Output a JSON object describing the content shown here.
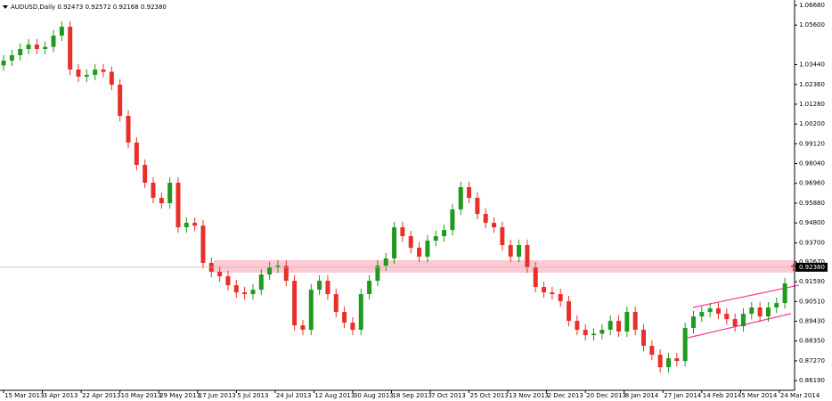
{
  "chart_data": {
    "type": "candlestick",
    "title": "AUDUSD,Daily  0.92473 0.92572 0.92168 0.92380",
    "up_color": "#1f9a1f",
    "down_color": "#e8302a",
    "xlim": [
      -1.3,
      285.5
    ],
    "ylim": [
      0.8566,
      1.0697
    ],
    "xticks": [
      {
        "value": 0,
        "label": "15 Mar 2013"
      },
      {
        "value": 14,
        "label": "3 Apr 2013"
      },
      {
        "value": 28,
        "label": "22 Apr 2013"
      },
      {
        "value": 42,
        "label": "10 May 2013"
      },
      {
        "value": 56,
        "label": "29 May 2013"
      },
      {
        "value": 70,
        "label": "17 Jun 2013"
      },
      {
        "value": 84,
        "label": "5 Jul 2013"
      },
      {
        "value": 98,
        "label": "24 Jul 2013"
      },
      {
        "value": 112,
        "label": "12 Aug 2013"
      },
      {
        "value": 126,
        "label": "30 Aug 2013"
      },
      {
        "value": 140,
        "label": "18 Sep 2013"
      },
      {
        "value": 154,
        "label": "7 Oct 2013"
      },
      {
        "value": 168,
        "label": "25 Oct 2013"
      },
      {
        "value": 182,
        "label": "13 Nov 2013"
      },
      {
        "value": 196,
        "label": "2 Dec 2013"
      },
      {
        "value": 210,
        "label": "20 Dec 2013"
      },
      {
        "value": 224,
        "label": "8 Jan 2014"
      },
      {
        "value": 238,
        "label": "27 Jan 2014"
      },
      {
        "value": 252,
        "label": "14 Feb 2014"
      },
      {
        "value": 266,
        "label": "5 Mar 2014"
      },
      {
        "value": 280,
        "label": "24 Mar 2014"
      }
    ],
    "yticks": [
      {
        "value": 1.0668,
        "label": "1.06680"
      },
      {
        "value": 1.056,
        "label": "1.05600"
      },
      {
        "value": 1.0344,
        "label": "1.03440"
      },
      {
        "value": 1.0236,
        "label": "1.02360"
      },
      {
        "value": 1.0128,
        "label": "1.01280"
      },
      {
        "value": 1.002,
        "label": "1.00200"
      },
      {
        "value": 0.9912,
        "label": "0.99120"
      },
      {
        "value": 0.9804,
        "label": "0.98040"
      },
      {
        "value": 0.9696,
        "label": "0.96960"
      },
      {
        "value": 0.9588,
        "label": "0.95880"
      },
      {
        "value": 0.948,
        "label": "0.94800"
      },
      {
        "value": 0.937,
        "label": "0.93700"
      },
      {
        "value": 0.9267,
        "label": "0.92670"
      },
      {
        "value": 0.9159,
        "label": "0.91590"
      },
      {
        "value": 0.9051,
        "label": "0.90510"
      },
      {
        "value": 0.8943,
        "label": "0.89430"
      },
      {
        "value": 0.8835,
        "label": "0.88350"
      },
      {
        "value": 0.8727,
        "label": "0.87270"
      },
      {
        "value": 0.8619,
        "label": "0.86190"
      }
    ],
    "current_price": {
      "value": 0.9238,
      "label": "0.92380"
    },
    "x": [
      0,
      3,
      6,
      9,
      12,
      15,
      18,
      21,
      24,
      27,
      30,
      33,
      36,
      39,
      42,
      45,
      48,
      51,
      54,
      57,
      60,
      63,
      66,
      69,
      72,
      75,
      78,
      81,
      84,
      87,
      90,
      93,
      96,
      99,
      102,
      105,
      108,
      111,
      114,
      117,
      120,
      123,
      126,
      129,
      132,
      135,
      138,
      141,
      144,
      147,
      150,
      153,
      156,
      159,
      162,
      165,
      168,
      171,
      174,
      177,
      180,
      183,
      186,
      189,
      192,
      195,
      198,
      201,
      204,
      207,
      210,
      213,
      216,
      219,
      222,
      225,
      228,
      231,
      234,
      237,
      240,
      243,
      246,
      249,
      252,
      255,
      258,
      261,
      264,
      267,
      270,
      273,
      276,
      279,
      282,
      285
    ],
    "open": [
      1.034,
      1.03662,
      1.03955,
      1.04295,
      1.04539,
      1.04295,
      1.0441,
      1.05025,
      1.05512,
      1.03176,
      1.02786,
      1.02884,
      1.03176,
      1.0305,
      1.02348,
      1.00645,
      0.99185,
      0.97968,
      0.96995,
      0.96167,
      0.95875,
      0.96995,
      0.94561,
      0.94805,
      0.9465,
      0.92614,
      0.92128,
      0.91884,
      0.91398,
      0.91008,
      0.90911,
      0.91154,
      0.91982,
      0.92371,
      0.92468,
      0.91641,
      0.89208,
      0.88964,
      0.91154,
      0.91641,
      0.90911,
      0.89938,
      0.89354,
      0.88964,
      0.90911,
      0.91641,
      0.92468,
      0.92858,
      0.94561,
      0.94075,
      0.93442,
      0.92955,
      0.93831,
      0.94075,
      0.94415,
      0.95535,
      0.96751,
      0.96167,
      0.95291,
      0.94805,
      0.94561,
      0.93588,
      0.92955,
      0.93588,
      0.92371,
      0.913,
      0.91008,
      0.90911,
      0.90522,
      0.89451,
      0.88964,
      0.88672,
      0.8875,
      0.88964,
      0.89451,
      0.88867,
      0.89938,
      0.88964,
      0.88088,
      0.87601,
      0.8692,
      0.87407,
      0.87261,
      0.89062,
      0.89694,
      0.89938,
      0.90132,
      0.8984,
      0.89548,
      0.89159,
      0.8984,
      0.90181,
      0.89694,
      0.90181,
      0.90424,
      0.92473
    ],
    "high": [
      1.03962,
      1.04255,
      1.04595,
      1.04839,
      1.04839,
      1.0471,
      1.05325,
      1.05812,
      1.05812,
      1.03476,
      1.03184,
      1.03476,
      1.03476,
      1.0335,
      1.02648,
      1.00945,
      0.99485,
      0.98268,
      0.97295,
      0.96467,
      0.97295,
      0.97295,
      0.95105,
      0.95105,
      0.9495,
      0.92914,
      0.92428,
      0.92184,
      0.91698,
      0.91308,
      0.91454,
      0.92282,
      0.92671,
      0.92768,
      0.92768,
      0.91941,
      0.89508,
      0.91454,
      0.91941,
      0.91941,
      0.91211,
      0.90238,
      0.89654,
      0.91211,
      0.91941,
      0.92768,
      0.93158,
      0.94861,
      0.94861,
      0.94375,
      0.93742,
      0.94131,
      0.94375,
      0.94715,
      0.95835,
      0.97051,
      0.97051,
      0.96467,
      0.95591,
      0.95105,
      0.94861,
      0.93888,
      0.93888,
      0.93888,
      0.92671,
      0.916,
      0.91308,
      0.91211,
      0.90822,
      0.89751,
      0.89264,
      0.8905,
      0.89264,
      0.89751,
      0.89751,
      0.90238,
      0.90238,
      0.89264,
      0.88388,
      0.87901,
      0.87707,
      0.87707,
      0.89362,
      0.89994,
      0.90238,
      0.90432,
      0.90432,
      0.9014,
      0.89848,
      0.9014,
      0.90481,
      0.90481,
      0.90481,
      0.90724,
      0.91795,
      0.92572
    ],
    "low": [
      1.031,
      1.03362,
      1.03655,
      1.03995,
      1.03995,
      1.03995,
      1.0411,
      1.04725,
      1.02876,
      1.02486,
      1.02486,
      1.02584,
      1.0275,
      1.02048,
      1.00345,
      0.98885,
      0.97668,
      0.96695,
      0.95867,
      0.95575,
      0.95575,
      0.94261,
      0.94261,
      0.9435,
      0.92314,
      0.91828,
      0.91584,
      0.91098,
      0.90708,
      0.90611,
      0.90611,
      0.90854,
      0.91682,
      0.92071,
      0.91341,
      0.88908,
      0.88664,
      0.88664,
      0.90854,
      0.90611,
      0.89638,
      0.89054,
      0.88664,
      0.88664,
      0.90611,
      0.91341,
      0.92168,
      0.92558,
      0.93775,
      0.93142,
      0.92655,
      0.92655,
      0.93531,
      0.93775,
      0.94115,
      0.95235,
      0.95867,
      0.94991,
      0.94505,
      0.94261,
      0.93288,
      0.92655,
      0.92655,
      0.92071,
      0.91,
      0.90708,
      0.90611,
      0.90222,
      0.89151,
      0.88664,
      0.88372,
      0.88372,
      0.8845,
      0.88664,
      0.88567,
      0.88567,
      0.88664,
      0.87788,
      0.87301,
      0.8662,
      0.8662,
      0.86961,
      0.86961,
      0.88762,
      0.89394,
      0.89638,
      0.8954,
      0.89248,
      0.88859,
      0.88859,
      0.8954,
      0.89394,
      0.89394,
      0.89881,
      0.90124,
      0.92168
    ],
    "close": [
      1.03662,
      1.03955,
      1.04295,
      1.04539,
      1.04295,
      1.0441,
      1.05025,
      1.05512,
      1.03176,
      1.02786,
      1.02884,
      1.03176,
      1.0305,
      1.02348,
      1.00645,
      0.99185,
      0.97968,
      0.96995,
      0.96167,
      0.95875,
      0.96995,
      0.94561,
      0.94805,
      0.9465,
      0.92614,
      0.92128,
      0.91884,
      0.91398,
      0.91008,
      0.90911,
      0.91154,
      0.91982,
      0.92371,
      0.92468,
      0.91641,
      0.89208,
      0.88964,
      0.91154,
      0.91641,
      0.90911,
      0.89938,
      0.89354,
      0.88964,
      0.90911,
      0.91641,
      0.92468,
      0.92858,
      0.94561,
      0.94075,
      0.93442,
      0.92955,
      0.93831,
      0.94075,
      0.94415,
      0.95535,
      0.96751,
      0.96167,
      0.95291,
      0.94805,
      0.94561,
      0.93588,
      0.92955,
      0.93588,
      0.92371,
      0.913,
      0.91008,
      0.90911,
      0.90522,
      0.89451,
      0.88964,
      0.88672,
      0.8875,
      0.88964,
      0.89451,
      0.88867,
      0.89938,
      0.88964,
      0.88088,
      0.87601,
      0.8692,
      0.87407,
      0.87261,
      0.89062,
      0.89694,
      0.89938,
      0.90132,
      0.8984,
      0.89548,
      0.89159,
      0.8984,
      0.90181,
      0.89694,
      0.90181,
      0.90424,
      0.91495,
      0.9238
    ]
  }
}
